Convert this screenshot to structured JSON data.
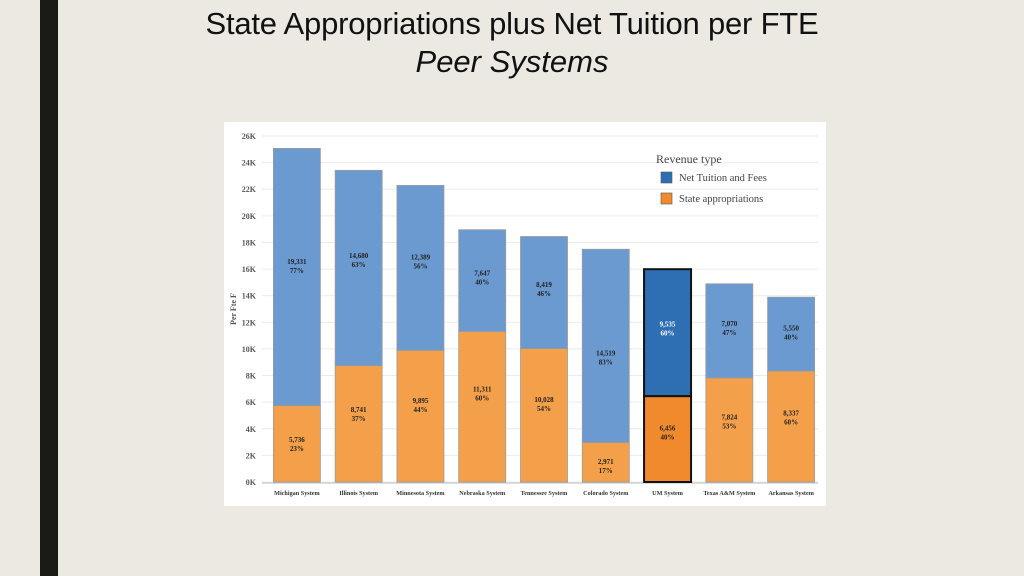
{
  "slide": {
    "title_line1": "State Appropriations plus Net Tuition per FTE",
    "title_line2": "Peer Systems"
  },
  "colors": {
    "tuition": "#6a9ad0",
    "tuition_highlight": "#2e6fb4",
    "appropriations": "#f4a04a",
    "appropriations_highlight": "#f08a2c",
    "legend_tuition": "#2e6fb4",
    "legend_appropriations": "#f08a2c"
  },
  "chart_data": {
    "type": "bar",
    "stacked": true,
    "ylabel": "Per Fte F",
    "ylim": [
      0,
      26000
    ],
    "yticks": [
      0,
      2000,
      4000,
      6000,
      8000,
      10000,
      12000,
      14000,
      16000,
      18000,
      20000,
      22000,
      24000,
      26000
    ],
    "ytick_labels": [
      "0K",
      "2K",
      "4K",
      "6K",
      "8K",
      "10K",
      "12K",
      "14K",
      "16K",
      "18K",
      "20K",
      "22K",
      "24K",
      "26K"
    ],
    "categories": [
      "Michigan System",
      "Illinois System",
      "Minnesota System",
      "Nebraska System",
      "Tennessee System",
      "Colorado System",
      "UM System",
      "Texas A&M System",
      "Arkansas System"
    ],
    "highlight": "UM System",
    "legend": {
      "title": "Revenue type",
      "entries": [
        "Net Tuition and Fees",
        "State appropriations"
      ]
    },
    "series": [
      {
        "name": "State appropriations",
        "values": [
          5736,
          8741,
          9895,
          11311,
          10028,
          2971,
          6456,
          7824,
          8337
        ],
        "value_labels": [
          "5,736",
          "8,741",
          "9,895",
          "11,311",
          "10,028",
          "2,971",
          "6,456",
          "7,824",
          "8,337"
        ],
        "pct_labels": [
          "23%",
          "37%",
          "44%",
          "60%",
          "54%",
          "17%",
          "40%",
          "53%",
          "60%"
        ]
      },
      {
        "name": "Net Tuition and Fees",
        "values": [
          19331,
          14680,
          12389,
          7647,
          8419,
          14519,
          9535,
          7070,
          5550
        ],
        "value_labels": [
          "19,331",
          "14,680",
          "12,389",
          "7,647",
          "8,419",
          "14,519",
          "9,535",
          "7,070",
          "5,550"
        ],
        "pct_labels": [
          "77%",
          "63%",
          "56%",
          "40%",
          "46%",
          "83%",
          "60%",
          "47%",
          "40%"
        ]
      }
    ]
  }
}
